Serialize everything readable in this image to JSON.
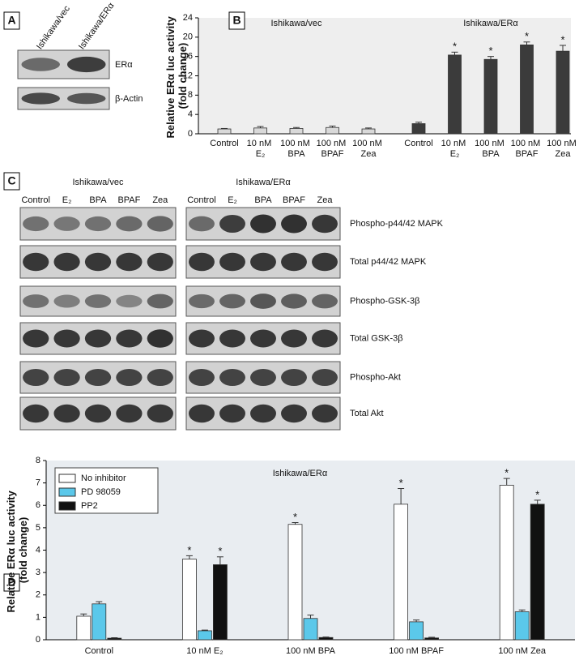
{
  "panel_labels": [
    "A",
    "B",
    "C",
    "D"
  ],
  "panel_a": {
    "lanes": [
      "Ishikawa/vec",
      "Ishikawa/ERα"
    ],
    "rows": [
      "ERα",
      "β-Actin"
    ]
  },
  "panel_c": {
    "groups": [
      {
        "label": "Ishikawa/vec",
        "lanes": [
          "Control",
          "E₂",
          "BPA",
          "BPAF",
          "Zea"
        ]
      },
      {
        "label": "Ishikawa/ERα",
        "lanes": [
          "Control",
          "E₂",
          "BPA",
          "BPAF",
          "Zea"
        ]
      }
    ],
    "rows": [
      "Phospho-p44/42 MAPK",
      "Total p44/42 MAPK",
      "Phospho-GSK-3β",
      "Total GSK-3β",
      "Phospho-Akt",
      "Total Akt"
    ]
  },
  "chart_data": [
    {
      "type": "bar",
      "ylabel": "Relative ERα luc activity (fold change)",
      "categories": [
        "Control",
        "10 nM E₂",
        "100 nM BPA",
        "100 nM BPAF",
        "100 nM Zea"
      ],
      "ylim": [
        0,
        24
      ],
      "yticks": [
        0,
        4,
        8,
        12,
        16,
        20,
        24
      ],
      "panels": [
        {
          "label": "Ishikawa/vec",
          "color": "#d9d9d9",
          "values": [
            1.0,
            1.2,
            1.1,
            1.3,
            1.0
          ],
          "errors": [
            0.1,
            0.3,
            0.2,
            0.3,
            0.2
          ],
          "annotations": [
            null,
            null,
            null,
            null,
            null
          ]
        },
        {
          "label": "Ishikawa/ERα",
          "color": "#3b3b3b",
          "values": [
            2.1,
            16.3,
            15.4,
            18.4,
            17.1
          ],
          "errors": [
            0.3,
            0.6,
            0.6,
            0.6,
            1.2
          ],
          "annotations": [
            null,
            "*",
            "*",
            "*",
            "*"
          ]
        }
      ]
    },
    {
      "type": "bar",
      "ylabel": "Relative ERα luc activity (fold change)",
      "annotation": "Ishikawa/ERα",
      "categories": [
        "Control",
        "10 nM E₂",
        "100 nM BPA",
        "100 nM BPAF",
        "100 nM Zea"
      ],
      "ylim": [
        0,
        8
      ],
      "yticks": [
        0,
        1,
        2,
        3,
        4,
        5,
        6,
        7,
        8
      ],
      "series": [
        {
          "name": "No inhibitor",
          "color": "#ffffff",
          "values": [
            1.05,
            3.6,
            5.15,
            6.05,
            6.9
          ],
          "errors": [
            0.1,
            0.15,
            0.08,
            0.7,
            0.3
          ],
          "annotations": [
            null,
            "*",
            "*",
            "*",
            "*"
          ]
        },
        {
          "name": "PD 98059",
          "color": "#5bc8ea",
          "values": [
            1.6,
            0.4,
            0.95,
            0.8,
            1.25
          ],
          "errors": [
            0.1,
            0.03,
            0.15,
            0.08,
            0.08
          ],
          "annotations": [
            null,
            null,
            null,
            null,
            null
          ]
        },
        {
          "name": "PP2",
          "color": "#111111",
          "values": [
            0.07,
            3.35,
            0.1,
            0.08,
            6.05
          ],
          "errors": [
            0.02,
            0.35,
            0.02,
            0.03,
            0.18
          ],
          "annotations": [
            null,
            "*",
            null,
            null,
            "*"
          ]
        }
      ]
    }
  ]
}
